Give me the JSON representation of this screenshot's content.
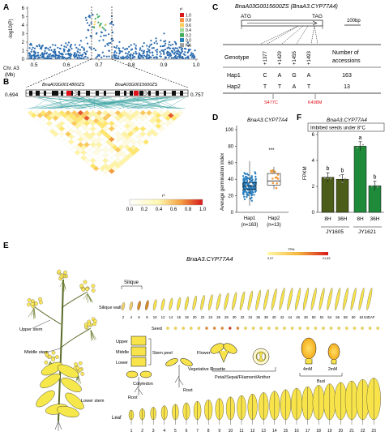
{
  "panels": {
    "A": "A",
    "B": "B",
    "C": "C",
    "D": "D",
    "E": "E",
    "F": "F"
  },
  "panelA": {
    "ylabel": "-log10(P)",
    "xlabel": "Chr. A3",
    "xunit": "(Mb)",
    "xticks": [
      "0.5",
      "0.6",
      "0.7",
      "0.8",
      "0.9",
      "1.0"
    ],
    "yticks": [
      "0",
      "1",
      "2",
      "3",
      "4",
      "5",
      "6"
    ],
    "legend_title": "r²",
    "legend": [
      "1.0",
      "0.8",
      "0.6",
      "0.4",
      "0.2",
      "0.0",
      "NA"
    ],
    "legend_colors": [
      "#d7191c",
      "#fd8d3c",
      "#fecc5c",
      "#a1d99b",
      "#41ab5d",
      "#2b83ba",
      "#9e9e9e"
    ]
  },
  "panelB": {
    "left_pos": "0.694",
    "right_pos": "0.757",
    "gene1": "BnaA03G0014800ZS",
    "gene2": "BnaA03G0015600ZS",
    "legend_title": "r²",
    "legend_ticks": [
      "0.0",
      "0.2",
      "0.4",
      "0.6",
      "0.8",
      "1.0"
    ]
  },
  "panelC": {
    "title": "BnaA03G0015600ZS (BnaA3.CYP77A4)",
    "atg": "ATG",
    "tag": "TAG",
    "scale": "100bp",
    "headers": [
      "Genotype",
      "+1377",
      "+1429",
      "+1455",
      "+1493",
      "Number of accessions"
    ],
    "rows": [
      {
        "g": "Hap1",
        "v": [
          "C",
          "A",
          "G",
          "A"
        ],
        "n": "163"
      },
      {
        "g": "Hap2",
        "v": [
          "T",
          "T",
          "A",
          "T"
        ],
        "n": "13"
      }
    ],
    "mut1": "S477C",
    "mut2": "K498M"
  },
  "panelD": {
    "title": "BnaA3.CYP77A4",
    "ylabel": "Average germination index",
    "yticks": [
      "0",
      "20",
      "40",
      "60",
      "80",
      "100"
    ],
    "groups": [
      "Hap1",
      "Hap2"
    ],
    "counts": [
      "(n=163)",
      "(n=13)"
    ],
    "sig": "***"
  },
  "panelF": {
    "title": "BnaA3.CYP77A4",
    "subtitle": "Imbibed seeds under 8°C",
    "ylabel": "FPKM",
    "yticks": [
      "0",
      "2",
      "4",
      "6"
    ],
    "bars": [
      {
        "x": "8H",
        "v": 2.7,
        "letter": "b"
      },
      {
        "x": "36H",
        "v": 2.55,
        "letter": "b"
      },
      {
        "x": "8H",
        "v": 5.1,
        "letter": "a"
      },
      {
        "x": "36H",
        "v": 2.05,
        "letter": "b"
      }
    ],
    "genotypes": [
      "JY1605",
      "JY1621"
    ]
  },
  "panelE": {
    "title": "BnaA3.CYP77A4",
    "tpm_label": "TPM",
    "tpm_min": "0.07",
    "tpm_max": "21.83",
    "plant_labels": [
      "Upper stem",
      "Middle stem",
      "Lower stem"
    ],
    "silique": "Silique",
    "silique_wall": "Silique wall",
    "silique_days": [
      "2",
      "4",
      "6",
      "8",
      "10",
      "12",
      "14",
      "16",
      "18",
      "20",
      "22",
      "24",
      "26",
      "28",
      "30",
      "32",
      "34",
      "36",
      "38",
      "40",
      "42",
      "44",
      "46",
      "48",
      "50",
      "52",
      "54",
      "56",
      "58",
      "60",
      "62",
      "64DAF"
    ],
    "seed": "Seed",
    "stem_parts": [
      "Upper",
      "Middle",
      "Lower"
    ],
    "stem_peel": "Stem peel",
    "cotyledon": "Cotyledon",
    "root": "Root",
    "vegetative_rosette": "Vegetative Rosette",
    "flower": "Flower",
    "flower_parts": "Petal/Sepal/Filament/Anther",
    "bud": "Bud",
    "bud_sizes": [
      "4mM",
      "2mM"
    ],
    "leaf": "Leaf",
    "leaf_nums": [
      "1",
      "2",
      "3",
      "4",
      "5",
      "6",
      "7",
      "8",
      "9",
      "10",
      "11",
      "12",
      "13",
      "14",
      "15",
      "16",
      "17",
      "18",
      "19",
      "20",
      "21",
      "22",
      "23"
    ]
  }
}
